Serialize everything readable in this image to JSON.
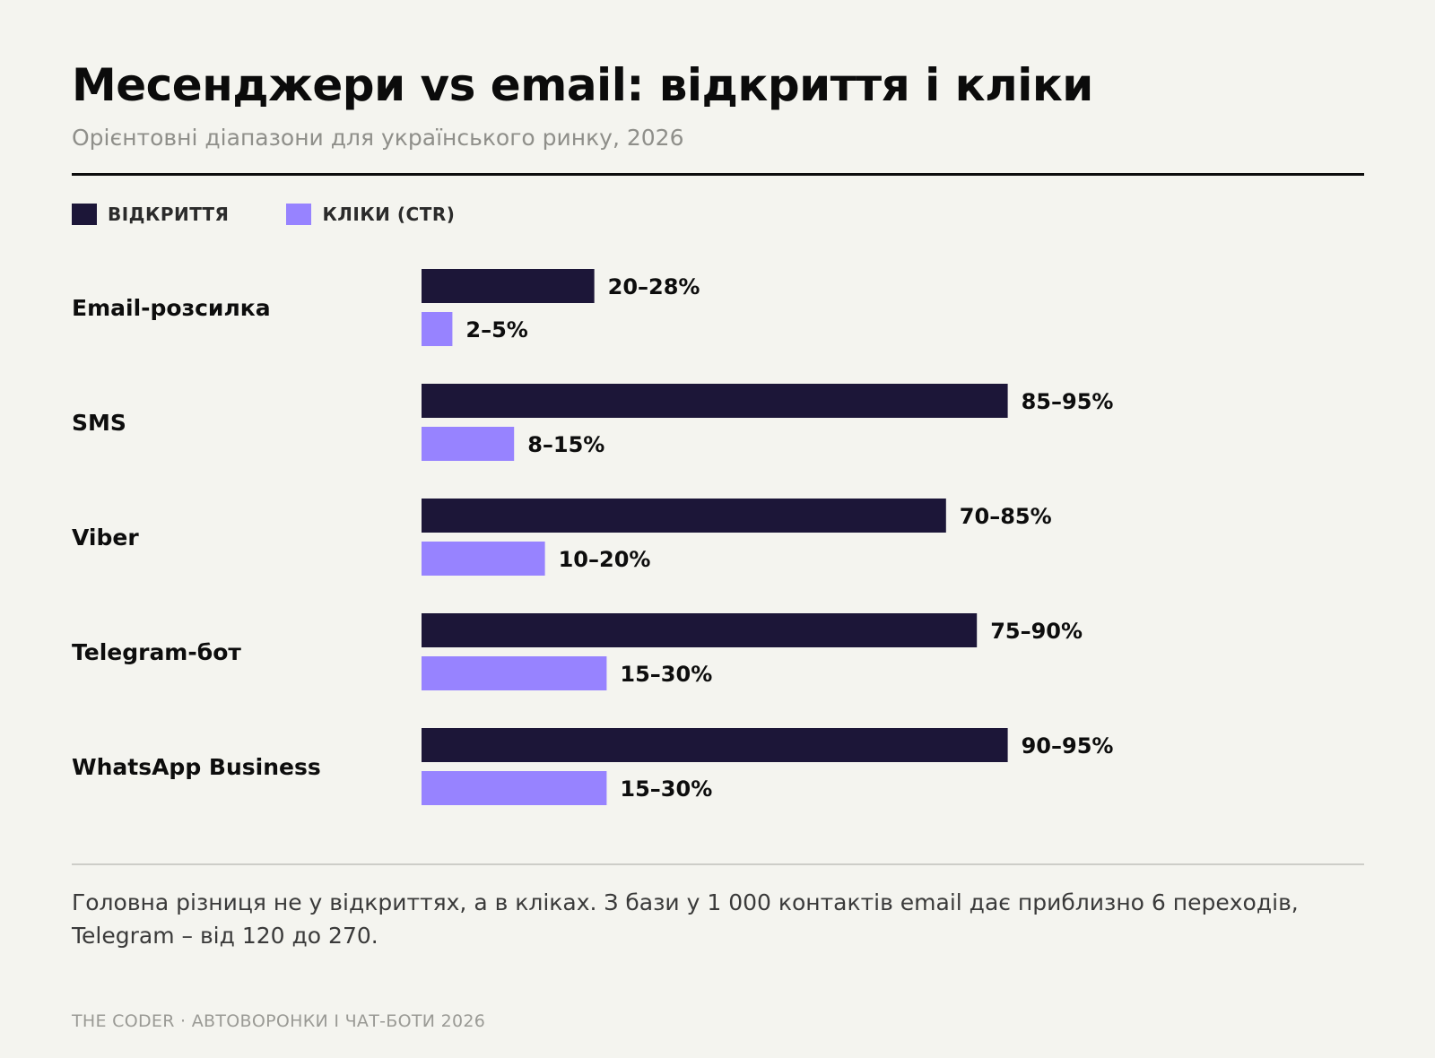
{
  "title": "Месенджери vs email: відкриття і кліки",
  "subtitle": "Орієнтовні діапазони для українського ринку, 2026",
  "legend": [
    {
      "label": "ВІДКРИТТЯ",
      "color": "#1c1638"
    },
    {
      "label": "КЛІКИ (CTR)",
      "color": "#9783ff"
    }
  ],
  "chart_data": {
    "type": "bar",
    "orientation": "horizontal",
    "categories": [
      "Email-розсилка",
      "SMS",
      "Viber",
      "Telegram-бот",
      "WhatsApp Business"
    ],
    "series": [
      {
        "name": "ВІДКРИТТЯ",
        "color": "#1c1638",
        "values": [
          [
            20,
            28
          ],
          [
            85,
            95
          ],
          [
            70,
            85
          ],
          [
            75,
            90
          ],
          [
            90,
            95
          ]
        ],
        "labels": [
          "20–28%",
          "85–95%",
          "70–85%",
          "75–90%",
          "90–95%"
        ]
      },
      {
        "name": "КЛІКИ (CTR)",
        "color": "#9783ff",
        "values": [
          [
            2,
            5
          ],
          [
            8,
            15
          ],
          [
            10,
            20
          ],
          [
            15,
            30
          ],
          [
            15,
            30
          ]
        ],
        "labels": [
          "2–5%",
          "8–15%",
          "10–20%",
          "15–30%",
          "15–30%"
        ]
      }
    ],
    "xlim": [
      0,
      100
    ],
    "grid": false,
    "legend_position": "top-left"
  },
  "note": "Головна різниця не у відкриттях, а в кліках. З бази у 1 000 контактів email дає приблизно 6 переходів, Telegram – від 120 до 270.",
  "footer": "THE CODER · АВТОВОРОНКИ І ЧАТ-БОТИ 2026"
}
